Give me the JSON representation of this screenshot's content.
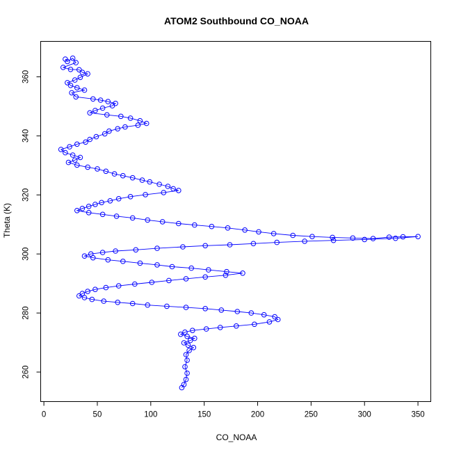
{
  "chart_data": {
    "type": "scatter",
    "title": "ATOM2 Southbound CO_NOAA",
    "xlabel": "CO_NOAA",
    "ylabel": "Theta (K)",
    "xlim": [
      -3,
      362
    ],
    "ylim": [
      250,
      372
    ],
    "x_ticks": [
      0,
      50,
      100,
      150,
      200,
      250,
      300,
      350
    ],
    "y_ticks": [
      260,
      280,
      300,
      320,
      340,
      360
    ],
    "grid": false,
    "legend": "none",
    "marker": "open-circle",
    "connected_line": true,
    "series": [
      {
        "color": "#0000ff",
        "points": [
          [
            20,
            366
          ],
          [
            22,
            365.2
          ],
          [
            27,
            366.3
          ],
          [
            30,
            364.8
          ],
          [
            18,
            363.2
          ],
          [
            25,
            362.5
          ],
          [
            33,
            362.4
          ],
          [
            36,
            361.5
          ],
          [
            41,
            361.0
          ],
          [
            34,
            359.8
          ],
          [
            29,
            358.9
          ],
          [
            22,
            358.0
          ],
          [
            25,
            357.1
          ],
          [
            31,
            356.3
          ],
          [
            38,
            355.5
          ],
          [
            26,
            354.6
          ],
          [
            30,
            353.2
          ],
          [
            46,
            352.5
          ],
          [
            53,
            352.1
          ],
          [
            60,
            351.6
          ],
          [
            67,
            351.0
          ],
          [
            64,
            350.2
          ],
          [
            55,
            349.4
          ],
          [
            48,
            348.6
          ],
          [
            43,
            347.8
          ],
          [
            59,
            347.1
          ],
          [
            72,
            346.6
          ],
          [
            81,
            346.0
          ],
          [
            90,
            345.1
          ],
          [
            96,
            344.2
          ],
          [
            88,
            343.6
          ],
          [
            76,
            343.0
          ],
          [
            69,
            342.4
          ],
          [
            61,
            341.6
          ],
          [
            57,
            340.7
          ],
          [
            49,
            339.7
          ],
          [
            43,
            338.8
          ],
          [
            39,
            337.9
          ],
          [
            31,
            337.2
          ],
          [
            24,
            336.3
          ],
          [
            16,
            335.4
          ],
          [
            20,
            334.3
          ],
          [
            27,
            333.5
          ],
          [
            34,
            332.7
          ],
          [
            29,
            331.8
          ],
          [
            23,
            331.0
          ],
          [
            31,
            330.1
          ],
          [
            41,
            329.4
          ],
          [
            50,
            328.8
          ],
          [
            58,
            328.0
          ],
          [
            66,
            327.1
          ],
          [
            74,
            326.5
          ],
          [
            83,
            325.8
          ],
          [
            92,
            325.0
          ],
          [
            99,
            324.4
          ],
          [
            108,
            323.6
          ],
          [
            116,
            322.9
          ],
          [
            121,
            322.1
          ],
          [
            126,
            321.5
          ],
          [
            112,
            320.8
          ],
          [
            95,
            320.1
          ],
          [
            81,
            319.4
          ],
          [
            70,
            318.7
          ],
          [
            62,
            318.0
          ],
          [
            54,
            317.4
          ],
          [
            48,
            316.8
          ],
          [
            42,
            316.1
          ],
          [
            36,
            315.4
          ],
          [
            31,
            314.7
          ],
          [
            42,
            314.0
          ],
          [
            55,
            313.4
          ],
          [
            68,
            312.8
          ],
          [
            83,
            312.2
          ],
          [
            97,
            311.5
          ],
          [
            111,
            310.9
          ],
          [
            126,
            310.3
          ],
          [
            141,
            309.8
          ],
          [
            157,
            309.3
          ],
          [
            172,
            308.8
          ],
          [
            188,
            308.1
          ],
          [
            201,
            307.5
          ],
          [
            215,
            306.9
          ],
          [
            233,
            306.3
          ],
          [
            251,
            305.9
          ],
          [
            270,
            305.6
          ],
          [
            289,
            305.4
          ],
          [
            308,
            305.2
          ],
          [
            323,
            305.7
          ],
          [
            336,
            305.8
          ],
          [
            350,
            305.9
          ],
          [
            329,
            305.3
          ],
          [
            300,
            304.9
          ],
          [
            271,
            304.6
          ],
          [
            244,
            304.3
          ],
          [
            218,
            303.9
          ],
          [
            196,
            303.5
          ],
          [
            174,
            303.1
          ],
          [
            151,
            302.8
          ],
          [
            130,
            302.4
          ],
          [
            106,
            301.9
          ],
          [
            86,
            301.4
          ],
          [
            67,
            301.0
          ],
          [
            55,
            300.5
          ],
          [
            44,
            300.0
          ],
          [
            38,
            299.3
          ],
          [
            46,
            298.7
          ],
          [
            60,
            298.0
          ],
          [
            74,
            297.5
          ],
          [
            90,
            296.9
          ],
          [
            106,
            296.3
          ],
          [
            120,
            295.7
          ],
          [
            138,
            295.2
          ],
          [
            154,
            294.6
          ],
          [
            171,
            294.0
          ],
          [
            186,
            293.5
          ],
          [
            170,
            292.8
          ],
          [
            151,
            292.2
          ],
          [
            133,
            291.6
          ],
          [
            117,
            291.0
          ],
          [
            101,
            290.4
          ],
          [
            85,
            289.8
          ],
          [
            70,
            289.2
          ],
          [
            58,
            288.6
          ],
          [
            48,
            288.0
          ],
          [
            41,
            287.3
          ],
          [
            36,
            286.6
          ],
          [
            33,
            285.8
          ],
          [
            38,
            285.2
          ],
          [
            45,
            284.6
          ],
          [
            56,
            284.0
          ],
          [
            69,
            283.6
          ],
          [
            83,
            283.2
          ],
          [
            97,
            282.7
          ],
          [
            115,
            282.3
          ],
          [
            133,
            281.9
          ],
          [
            151,
            281.5
          ],
          [
            166,
            281.0
          ],
          [
            181,
            280.5
          ],
          [
            194,
            280.0
          ],
          [
            206,
            279.4
          ],
          [
            216,
            278.7
          ],
          [
            219,
            277.8
          ],
          [
            211,
            277.0
          ],
          [
            197,
            276.2
          ],
          [
            180,
            275.6
          ],
          [
            165,
            275.1
          ],
          [
            152,
            274.6
          ],
          [
            139,
            274.1
          ],
          [
            132,
            273.5
          ],
          [
            128,
            272.8
          ],
          [
            134,
            272.1
          ],
          [
            141,
            271.4
          ],
          [
            137,
            270.7
          ],
          [
            131,
            269.9
          ],
          [
            135,
            269.1
          ],
          [
            140,
            268.3
          ],
          [
            136,
            267.3
          ],
          [
            133,
            265.9
          ],
          [
            134,
            264.0
          ],
          [
            132,
            261.8
          ],
          [
            134,
            259.6
          ],
          [
            133,
            257.5
          ],
          [
            131,
            255.8
          ],
          [
            129,
            254.7
          ]
        ]
      }
    ]
  }
}
